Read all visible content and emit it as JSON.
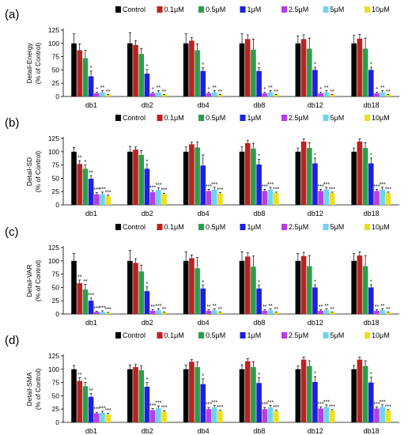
{
  "colors": [
    "#000000",
    "#c0201c",
    "#27a048",
    "#1f1fe0",
    "#b63ee6",
    "#6fd3f0",
    "#ebe01e"
  ],
  "legend": [
    "Control",
    "0.1μM",
    "0.5μM",
    "1μM",
    "2.5μM",
    "5μM",
    "10μM"
  ],
  "chart_data": [
    {
      "type": "bar",
      "panel_label": "(a)",
      "ylabel_line1": "Detail-Energy",
      "ylabel_line2": "(% of Control)",
      "ylim": [
        0,
        125
      ],
      "yticks": [
        "0",
        "25",
        "50",
        "75",
        "100",
        "125"
      ],
      "categories": [
        "db1",
        "db2",
        "db4",
        "db8",
        "db12",
        "db18"
      ],
      "series": [
        {
          "name": "Control",
          "values": [
            100,
            100,
            100,
            100,
            100,
            100
          ],
          "errors": [
            18,
            20,
            18,
            18,
            14,
            15
          ]
        },
        {
          "name": "0.1μM",
          "values": [
            87,
            97,
            105,
            108,
            108,
            109
          ],
          "errors": [
            12,
            8,
            6,
            8,
            8,
            8
          ]
        },
        {
          "name": "0.5μM",
          "values": [
            72,
            80,
            87,
            88,
            90,
            90
          ],
          "errors": [
            15,
            10,
            12,
            20,
            20,
            20
          ]
        },
        {
          "name": "1μM",
          "values": [
            38,
            43,
            48,
            48,
            50,
            50
          ],
          "errors": [
            10,
            8,
            6,
            6,
            5,
            5
          ]
        },
        {
          "name": "2.5μM",
          "values": [
            6,
            6,
            6,
            6,
            6,
            6
          ],
          "errors": [
            2,
            2,
            2,
            2,
            2,
            2
          ]
        },
        {
          "name": "5μM",
          "values": [
            8,
            8,
            8,
            8,
            8,
            8
          ],
          "errors": [
            3,
            3,
            3,
            3,
            3,
            3
          ]
        },
        {
          "name": "10μM",
          "values": [
            3,
            3,
            3,
            3,
            3,
            3
          ],
          "errors": [
            1,
            1,
            1,
            1,
            1,
            1
          ]
        }
      ],
      "significance": [
        [
          "",
          "",
          "",
          "",
          "",
          ""
        ],
        [
          "",
          "",
          "",
          "",
          "",
          ""
        ],
        [
          "",
          "",
          "",
          "",
          "",
          ""
        ],
        [
          "*",
          "*",
          "*",
          "*",
          "*",
          "*"
        ],
        [
          "*",
          "*",
          "*",
          "*",
          "*",
          "*"
        ],
        [
          "**",
          "**",
          "**",
          "**",
          "**",
          "**"
        ],
        [
          "**",
          "**",
          "**",
          "**",
          "**",
          "**"
        ]
      ]
    },
    {
      "type": "bar",
      "panel_label": "(b)",
      "ylabel_line1": "Detail-SD",
      "ylabel_line2": "(% of Control)",
      "ylim": [
        0,
        125
      ],
      "yticks": [
        "0",
        "25",
        "50",
        "75",
        "100",
        "125"
      ],
      "categories": [
        "db1",
        "db2",
        "db4",
        "db8",
        "db12",
        "db18"
      ],
      "series": [
        {
          "name": "Control",
          "values": [
            100,
            100,
            100,
            100,
            100,
            100
          ],
          "errors": [
            8,
            10,
            9,
            9,
            7,
            7
          ]
        },
        {
          "name": "0.1μM",
          "values": [
            77,
            104,
            114,
            116,
            119,
            119
          ],
          "errors": [
            6,
            5,
            4,
            5,
            5,
            5
          ]
        },
        {
          "name": "0.5μM",
          "values": [
            68,
            94,
            108,
            106,
            107,
            107
          ],
          "errors": [
            7,
            8,
            10,
            10,
            10,
            10
          ]
        },
        {
          "name": "1μM",
          "values": [
            49,
            68,
            74,
            76,
            78,
            78
          ],
          "errors": [
            6,
            8,
            20,
            10,
            10,
            10
          ]
        },
        {
          "name": "2.5μM",
          "values": [
            20,
            24,
            26,
            26,
            26,
            26
          ],
          "errors": [
            3,
            3,
            3,
            3,
            3,
            3
          ]
        },
        {
          "name": "5μM",
          "values": [
            20,
            28,
            29,
            29,
            29,
            29
          ],
          "errors": [
            4,
            4,
            4,
            4,
            4,
            4
          ]
        },
        {
          "name": "10μM",
          "values": [
            16,
            20,
            21,
            22,
            22,
            22
          ],
          "errors": [
            2,
            2,
            2,
            2,
            2,
            2
          ]
        }
      ],
      "significance": [
        [
          "",
          "",
          "",
          "",
          "",
          ""
        ],
        [
          "**",
          "",
          "",
          "",
          "",
          ""
        ],
        [
          "*",
          "",
          "",
          "",
          "",
          ""
        ],
        [
          "**",
          "*",
          "",
          "*",
          "*",
          "*"
        ],
        [
          "***",
          "***",
          "***",
          "***",
          "***",
          "***"
        ],
        [
          "***",
          "***",
          "***",
          "***",
          "***",
          "***"
        ],
        [
          "***",
          "***",
          "***",
          "***",
          "***",
          "***"
        ]
      ]
    },
    {
      "type": "bar",
      "panel_label": "(c)",
      "ylabel_line1": "Detail-VAR",
      "ylabel_line2": "(% of Control)",
      "ylim": [
        0,
        125
      ],
      "yticks": [
        "0",
        "25",
        "50",
        "75",
        "100",
        "125"
      ],
      "categories": [
        "db1",
        "db2",
        "db4",
        "db8",
        "db12",
        "db18"
      ],
      "series": [
        {
          "name": "Control",
          "values": [
            100,
            100,
            100,
            100,
            100,
            100
          ],
          "errors": [
            14,
            20,
            17,
            17,
            14,
            14
          ]
        },
        {
          "name": "0.1μM",
          "values": [
            58,
            96,
            105,
            108,
            109,
            110
          ],
          "errors": [
            6,
            8,
            6,
            7,
            7,
            7
          ]
        },
        {
          "name": "0.5μM",
          "values": [
            46,
            80,
            86,
            89,
            90,
            90
          ],
          "errors": [
            10,
            12,
            20,
            20,
            20,
            20
          ]
        },
        {
          "name": "1μM",
          "values": [
            25,
            43,
            48,
            48,
            50,
            50
          ],
          "errors": [
            5,
            8,
            6,
            6,
            5,
            5
          ]
        },
        {
          "name": "2.5μM",
          "values": [
            4,
            6,
            6,
            6,
            6,
            6
          ],
          "errors": [
            1,
            2,
            2,
            2,
            2,
            2
          ]
        },
        {
          "name": "5μM",
          "values": [
            4,
            7,
            7,
            7,
            7,
            7
          ],
          "errors": [
            2,
            3,
            3,
            3,
            3,
            3
          ]
        },
        {
          "name": "10μM",
          "values": [
            2,
            3,
            3,
            3,
            3,
            3
          ],
          "errors": [
            1,
            1,
            1,
            1,
            1,
            1
          ]
        }
      ],
      "significance": [
        [
          "",
          "",
          "",
          "",
          "",
          ""
        ],
        [
          "**",
          "",
          "",
          "",
          "",
          ""
        ],
        [
          "**",
          "",
          "",
          "",
          "",
          ""
        ],
        [
          "***",
          "*",
          "*",
          "*",
          "*",
          "*"
        ],
        [
          "***",
          "**",
          "**",
          "**",
          "**",
          "**"
        ],
        [
          "***",
          "***",
          "**",
          "**",
          "**",
          "**"
        ],
        [
          "***",
          "**",
          "**",
          "**",
          "**",
          "**"
        ]
      ]
    },
    {
      "type": "bar",
      "panel_label": "(d)",
      "ylabel_line1": "Detail-SMA",
      "ylabel_line2": "(% of Control)",
      "ylim": [
        0,
        125
      ],
      "yticks": [
        "0",
        "25",
        "50",
        "75",
        "100",
        "125"
      ],
      "categories": [
        "db1",
        "db2",
        "db4",
        "db8",
        "db12",
        "db18"
      ],
      "series": [
        {
          "name": "Control",
          "values": [
            100,
            100,
            100,
            100,
            100,
            100
          ],
          "errors": [
            7,
            8,
            8,
            8,
            6,
            7
          ]
        },
        {
          "name": "0.1μM",
          "values": [
            78,
            104,
            114,
            115,
            118,
            118
          ],
          "errors": [
            6,
            5,
            4,
            5,
            5,
            5
          ]
        },
        {
          "name": "0.5μM",
          "values": [
            68,
            98,
            104,
            104,
            106,
            106
          ],
          "errors": [
            7,
            8,
            10,
            10,
            10,
            10
          ]
        },
        {
          "name": "1μM",
          "values": [
            48,
            67,
            72,
            74,
            76,
            75
          ],
          "errors": [
            6,
            8,
            10,
            10,
            10,
            10
          ]
        },
        {
          "name": "2.5μM",
          "values": [
            17,
            23,
            25,
            25,
            26,
            26
          ],
          "errors": [
            2,
            3,
            3,
            3,
            3,
            3
          ]
        },
        {
          "name": "5μM",
          "values": [
            18,
            27,
            28,
            28,
            29,
            29
          ],
          "errors": [
            3,
            4,
            4,
            4,
            4,
            4
          ]
        },
        {
          "name": "10μM",
          "values": [
            15,
            20,
            21,
            21,
            22,
            22
          ],
          "errors": [
            2,
            2,
            2,
            2,
            2,
            2
          ]
        }
      ],
      "significance": [
        [
          "",
          "",
          "",
          "",
          "",
          ""
        ],
        [
          "**",
          "",
          "",
          "",
          "",
          ""
        ],
        [
          "*",
          "",
          "",
          "",
          "",
          ""
        ],
        [
          "**",
          "*",
          "*",
          "*",
          "*",
          "*"
        ],
        [
          "***",
          "***",
          "***",
          "***",
          "***",
          "***"
        ],
        [
          "***",
          "***",
          "***",
          "***",
          "***",
          "***"
        ],
        [
          "***",
          "***",
          "***",
          "***",
          "***",
          "***"
        ]
      ]
    }
  ]
}
